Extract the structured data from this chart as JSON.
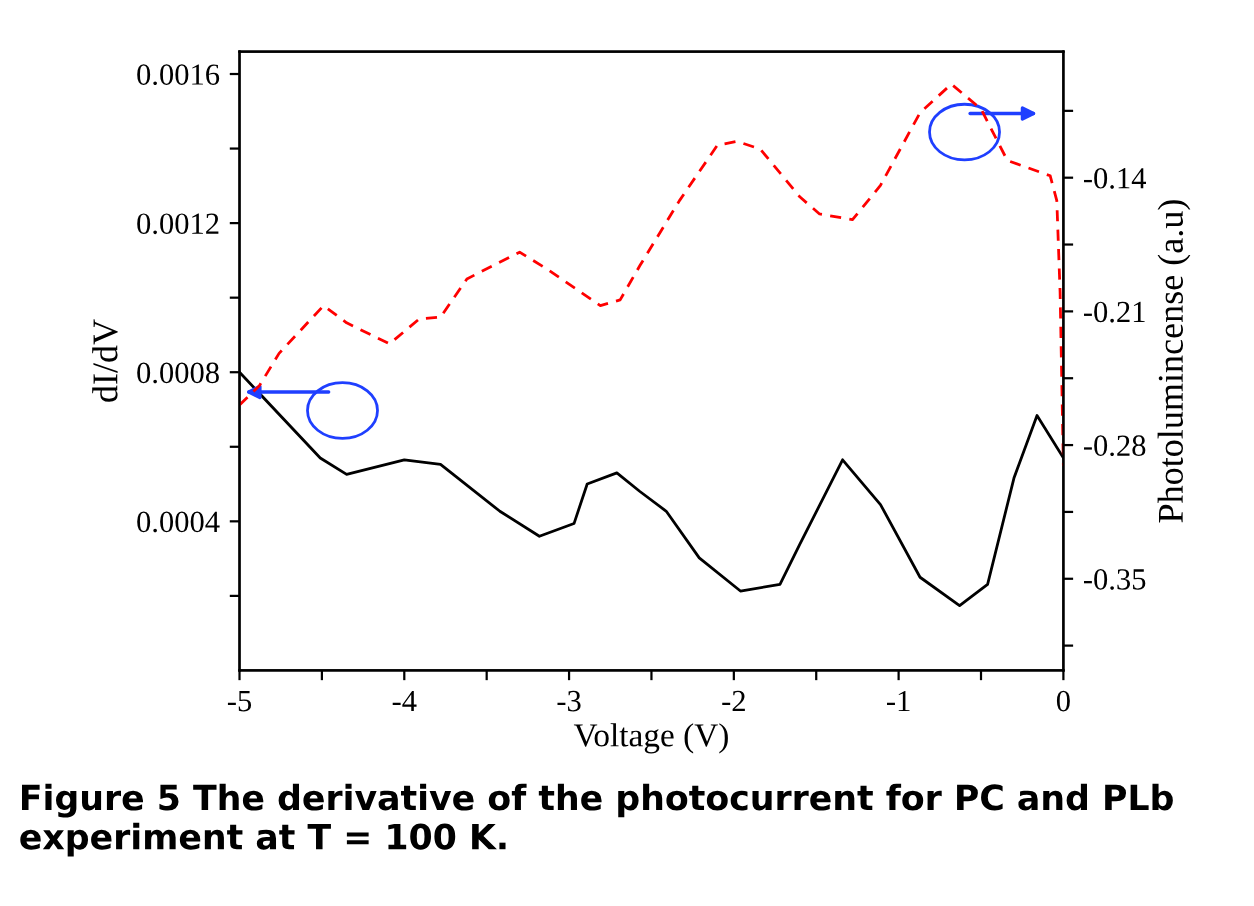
{
  "chart_data": {
    "type": "line",
    "xlabel": "Voltage (V)",
    "ylabel": "dI/dV",
    "y2label": "Photolumincense (a.u)",
    "xlim": [
      -5,
      0
    ],
    "xticks": [
      -5,
      {
        "value": -4.5,
        "label": null
      },
      -4,
      {
        "value": -3.5,
        "label": null
      },
      -3,
      {
        "value": -2.5,
        "label": null
      },
      -2,
      {
        "value": -1.5,
        "label": null
      },
      -1,
      {
        "value": -0.5,
        "label": null
      },
      0
    ],
    "ylim": [
      0,
      0.00166
    ],
    "yticks": [
      {
        "value": 0.0002,
        "label": null
      },
      0.0004,
      {
        "value": 0.0006,
        "label": null
      },
      0.0008,
      {
        "value": 0.001,
        "label": null
      },
      0.0012,
      {
        "value": 0.0014,
        "label": null
      },
      0.0016
    ],
    "y2lim": [
      -0.398,
      -0.074
    ],
    "y2ticks": [
      {
        "value": -0.385,
        "label": null
      },
      -0.35,
      {
        "value": -0.315,
        "label": null
      },
      -0.28,
      {
        "value": -0.245,
        "label": null
      },
      -0.21,
      {
        "value": -0.175,
        "label": null
      },
      -0.14,
      {
        "value": -0.105,
        "label": null
      }
    ],
    "grid": false,
    "legend": false,
    "series": [
      {
        "color": "#000000",
        "line_style": "solid",
        "x": [
          -5,
          -4.51,
          -4.35,
          -4.0,
          -3.78,
          -3.42,
          -3.18,
          -2.97,
          -2.89,
          -2.71,
          -2.57,
          -2.41,
          -2.21,
          -1.96,
          -1.72,
          -1.6,
          -1.34,
          -1.11,
          -0.87,
          -0.63,
          -0.46,
          -0.3,
          -0.16,
          0
        ],
        "values": [
          0.0008,
          0.00057,
          0.000526,
          0.000565,
          0.000553,
          0.000427,
          0.00036,
          0.000394,
          0.0005,
          0.00053,
          0.00048,
          0.000427,
          0.000302,
          0.000213,
          0.000231,
          0.000338,
          0.000565,
          0.000445,
          0.00025,
          0.000174,
          0.000231,
          0.000516,
          0.000684,
          0.00057
        ]
      },
      {
        "color": "#ff0000",
        "line_style": "dashed",
        "axis": "y2",
        "x": [
          -5,
          -4.88,
          -4.76,
          -4.49,
          -4.35,
          -4.09,
          -3.91,
          -3.78,
          -3.62,
          -3.3,
          -3.13,
          -2.81,
          -2.69,
          -2.57,
          -2.33,
          -2.1,
          -1.98,
          -1.84,
          -1.6,
          -1.48,
          -1.28,
          -1.11,
          -0.87,
          -0.68,
          -0.5,
          -0.34,
          -0.08,
          -0.04,
          -0.02,
          0
        ],
        "values": [
          -0.259,
          -0.249,
          -0.232,
          -0.207,
          -0.216,
          -0.227,
          -0.214,
          -0.213,
          -0.193,
          -0.179,
          -0.188,
          -0.207,
          -0.204,
          -0.186,
          -0.152,
          -0.123,
          -0.121,
          -0.125,
          -0.15,
          -0.159,
          -0.162,
          -0.144,
          -0.106,
          -0.091,
          -0.104,
          -0.131,
          -0.139,
          -0.152,
          -0.2,
          -0.291
        ]
      }
    ],
    "annotations": [
      "Figure 5 The derivative of the photocurrent for PC and PLb experiment at T = 100 K."
    ]
  }
}
